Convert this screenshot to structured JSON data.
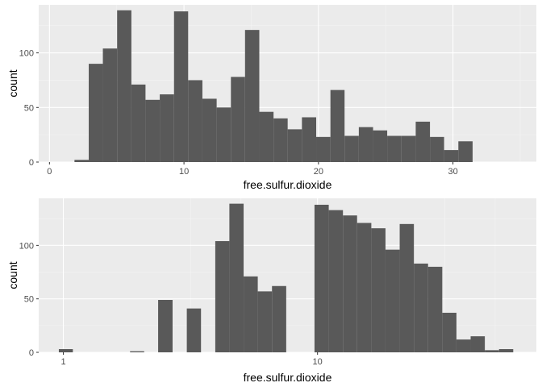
{
  "colors": {
    "panel_background": "#ebebeb",
    "grid_major": "#ffffff",
    "grid_minor": "#f5f5f5",
    "bar_fill": "#595959",
    "tick_text": "#4d4d4d",
    "axis_title": "#000000"
  },
  "chart_data": [
    {
      "type": "bar",
      "subtype": "histogram",
      "xlabel": "free.sulfur.dioxide",
      "ylabel": "count",
      "x_scale": "linear",
      "xlim": [
        -0.8,
        36.2
      ],
      "ylim": [
        0,
        144
      ],
      "x_ticks": [
        {
          "value": 0,
          "label": "0"
        },
        {
          "value": 10,
          "label": "10"
        },
        {
          "value": 20,
          "label": "20"
        },
        {
          "value": 30,
          "label": "30"
        }
      ],
      "y_ticks": [
        {
          "value": 0,
          "label": "0"
        },
        {
          "value": 50,
          "label": "50"
        },
        {
          "value": 100,
          "label": "100"
        }
      ],
      "grid": true,
      "bins": [
        {
          "x0": 1.86,
          "x1": 2.92,
          "count": 2
        },
        {
          "x0": 2.92,
          "x1": 3.97,
          "count": 90
        },
        {
          "x0": 3.97,
          "x1": 5.03,
          "count": 104
        },
        {
          "x0": 5.03,
          "x1": 6.09,
          "count": 139
        },
        {
          "x0": 6.09,
          "x1": 7.14,
          "count": 71
        },
        {
          "x0": 7.14,
          "x1": 8.2,
          "count": 57
        },
        {
          "x0": 8.2,
          "x1": 9.26,
          "count": 62
        },
        {
          "x0": 9.26,
          "x1": 10.31,
          "count": 138
        },
        {
          "x0": 10.31,
          "x1": 11.37,
          "count": 75
        },
        {
          "x0": 11.37,
          "x1": 12.43,
          "count": 58
        },
        {
          "x0": 12.43,
          "x1": 13.49,
          "count": 50
        },
        {
          "x0": 13.49,
          "x1": 14.54,
          "count": 78
        },
        {
          "x0": 14.54,
          "x1": 15.6,
          "count": 121
        },
        {
          "x0": 15.6,
          "x1": 16.66,
          "count": 46
        },
        {
          "x0": 16.66,
          "x1": 17.71,
          "count": 40
        },
        {
          "x0": 17.71,
          "x1": 18.77,
          "count": 30
        },
        {
          "x0": 18.77,
          "x1": 19.83,
          "count": 41
        },
        {
          "x0": 19.83,
          "x1": 20.89,
          "count": 23
        },
        {
          "x0": 20.89,
          "x1": 21.94,
          "count": 66
        },
        {
          "x0": 21.94,
          "x1": 23.0,
          "count": 24
        },
        {
          "x0": 23.0,
          "x1": 24.06,
          "count": 32
        },
        {
          "x0": 24.06,
          "x1": 25.11,
          "count": 29
        },
        {
          "x0": 25.11,
          "x1": 26.17,
          "count": 24
        },
        {
          "x0": 26.17,
          "x1": 27.23,
          "count": 24
        },
        {
          "x0": 27.23,
          "x1": 28.29,
          "count": 37
        },
        {
          "x0": 28.29,
          "x1": 29.34,
          "count": 23
        },
        {
          "x0": 29.34,
          "x1": 30.4,
          "count": 11
        },
        {
          "x0": 30.4,
          "x1": 31.46,
          "count": 19
        }
      ]
    },
    {
      "type": "bar",
      "subtype": "histogram",
      "xlabel": "free.sulfur.dioxide",
      "ylabel": "count",
      "x_scale": "log10",
      "xlim": [
        0.8,
        72.6
      ],
      "ylim": [
        0,
        144
      ],
      "x_ticks": [
        {
          "value": 1,
          "label": "1"
        },
        {
          "value": 10,
          "label": "10"
        }
      ],
      "y_ticks": [
        {
          "value": 0,
          "label": "0"
        },
        {
          "value": 50,
          "label": "50"
        },
        {
          "value": 100,
          "label": "100"
        }
      ],
      "grid": true,
      "bins": [
        {
          "x0": 0.96,
          "x1": 1.09,
          "count": 3
        },
        {
          "x0": 1.09,
          "x1": 1.24,
          "count": 0
        },
        {
          "x0": 1.24,
          "x1": 1.41,
          "count": 0
        },
        {
          "x0": 1.41,
          "x1": 1.61,
          "count": 0
        },
        {
          "x0": 1.61,
          "x1": 1.83,
          "count": 0
        },
        {
          "x0": 1.83,
          "x1": 2.08,
          "count": 1
        },
        {
          "x0": 2.08,
          "x1": 2.36,
          "count": 0
        },
        {
          "x0": 2.36,
          "x1": 2.69,
          "count": 49
        },
        {
          "x0": 2.69,
          "x1": 3.06,
          "count": 0
        },
        {
          "x0": 3.06,
          "x1": 3.48,
          "count": 41
        },
        {
          "x0": 3.48,
          "x1": 3.96,
          "count": 0
        },
        {
          "x0": 3.96,
          "x1": 4.5,
          "count": 104
        },
        {
          "x0": 4.5,
          "x1": 5.12,
          "count": 139
        },
        {
          "x0": 5.12,
          "x1": 5.82,
          "count": 71
        },
        {
          "x0": 5.82,
          "x1": 6.62,
          "count": 57
        },
        {
          "x0": 6.62,
          "x1": 7.53,
          "count": 62
        },
        {
          "x0": 7.53,
          "x1": 8.56,
          "count": 0
        },
        {
          "x0": 8.56,
          "x1": 9.73,
          "count": 0
        },
        {
          "x0": 9.73,
          "x1": 11.07,
          "count": 138
        },
        {
          "x0": 11.07,
          "x1": 12.59,
          "count": 133
        },
        {
          "x0": 12.59,
          "x1": 14.31,
          "count": 128
        },
        {
          "x0": 14.31,
          "x1": 16.28,
          "count": 121
        },
        {
          "x0": 16.28,
          "x1": 18.51,
          "count": 116
        },
        {
          "x0": 18.51,
          "x1": 21.05,
          "count": 96
        },
        {
          "x0": 21.05,
          "x1": 23.94,
          "count": 120
        },
        {
          "x0": 23.94,
          "x1": 27.22,
          "count": 83
        },
        {
          "x0": 27.22,
          "x1": 30.96,
          "count": 80
        },
        {
          "x0": 30.96,
          "x1": 35.2,
          "count": 37
        },
        {
          "x0": 35.2,
          "x1": 40.03,
          "count": 12
        },
        {
          "x0": 40.03,
          "x1": 45.52,
          "count": 15
        },
        {
          "x0": 45.52,
          "x1": 51.77,
          "count": 2
        },
        {
          "x0": 51.77,
          "x1": 58.87,
          "count": 3
        }
      ]
    }
  ]
}
